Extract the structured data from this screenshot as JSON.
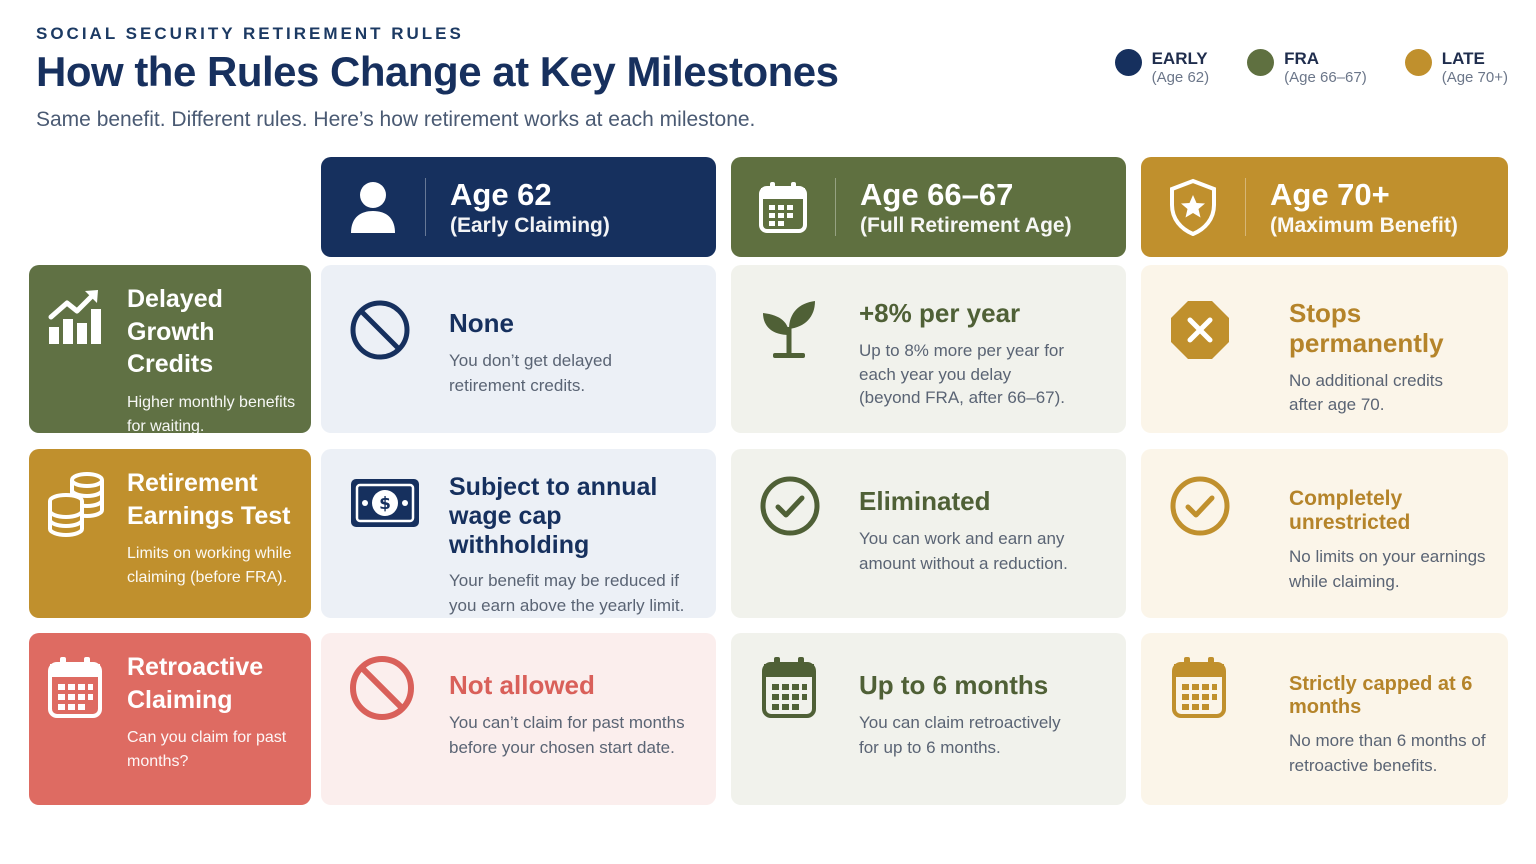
{
  "header": {
    "kicker": "SOCIAL SECURITY RETIREMENT RULES",
    "title": "How the Rules Change at Key Milestones",
    "subtitle": "Same benefit. Different rules. Here’s how retirement works at each milestone."
  },
  "legend": [
    {
      "name": "EARLY",
      "age": "(Age 62)",
      "color": "#16305e"
    },
    {
      "name": "FRA",
      "age": "(Age 66–67)",
      "color": "#5f7040"
    },
    {
      "name": "LATE",
      "age": "(Age 70+)",
      "color": "#c0902d"
    }
  ],
  "columns": [
    {
      "age": "Age 62",
      "sub": "(Early Claiming)",
      "icon": "person-icon",
      "color": "#16305e"
    },
    {
      "age": "Age 66–67",
      "sub": "(Full Retirement Age)",
      "icon": "calendar-icon",
      "color": "#5f7040"
    },
    {
      "age": "Age 70+",
      "sub": "(Maximum Benefit)",
      "icon": "shield-star-icon",
      "color": "#c0902d"
    }
  ],
  "rows": [
    {
      "title": "Delayed Growth Credits",
      "desc": "Higher monthly benefits for waiting.",
      "icon": "growth-chart-icon",
      "color": "#607144",
      "cells": [
        {
          "title": "None",
          "desc": "You don’t get delayed retirement credits.",
          "icon": "prohibited-icon",
          "title_color": "#16305e",
          "bg": "#ecf0f6"
        },
        {
          "title": "+8% per year",
          "desc": "Up to 8% more per year for each year you delay (beyond FRA, after 66–67).",
          "icon": "sprout-icon",
          "title_color": "#4f6036",
          "bg": "#f1f2ec"
        },
        {
          "title": "Stops permanently",
          "desc": "No additional credits after age 70.",
          "icon": "stop-x-icon",
          "title_color": "#b5842a",
          "bg": "#fbf5e9"
        }
      ]
    },
    {
      "title": "Retirement Earnings Test",
      "desc": "Limits on working while claiming (before FRA).",
      "icon": "coins-icon",
      "color": "#c0902d",
      "cells": [
        {
          "title": "Subject to annual wage cap withholding",
          "desc": "Your benefit may be reduced if you earn above the yearly limit.",
          "icon": "cash-icon",
          "title_color": "#16305e",
          "bg": "#ecf0f6"
        },
        {
          "title": "Eliminated",
          "desc": "You can work and earn any amount without a reduction.",
          "icon": "check-circle-icon",
          "title_color": "#4f6036",
          "bg": "#f1f2ec"
        },
        {
          "title": "Completely unrestricted",
          "desc": "No limits on your earnings while claiming.",
          "icon": "check-circle-icon",
          "title_color": "#b5842a",
          "bg": "#fbf5e9"
        }
      ]
    },
    {
      "title": "Retroactive Claiming",
      "desc": "Can you claim for past months?",
      "icon": "calendar-icon",
      "color": "#de6b62",
      "cells": [
        {
          "title": "Not allowed",
          "desc": "You can’t claim for past months before your chosen start date.",
          "icon": "prohibited-icon",
          "title_color": "#d9605a",
          "bg": "#fbeeed"
        },
        {
          "title": "Up to 6 months",
          "desc": "You can claim retroactively for up to 6 months.",
          "icon": "calendar-icon",
          "title_color": "#4f6036",
          "bg": "#f1f2ec"
        },
        {
          "title": "Strictly capped at 6 months",
          "desc": "No more than 6 months of retroactive benefits.",
          "icon": "calendar-icon",
          "title_color": "#b5842a",
          "bg": "#fbf5e9"
        }
      ]
    }
  ]
}
